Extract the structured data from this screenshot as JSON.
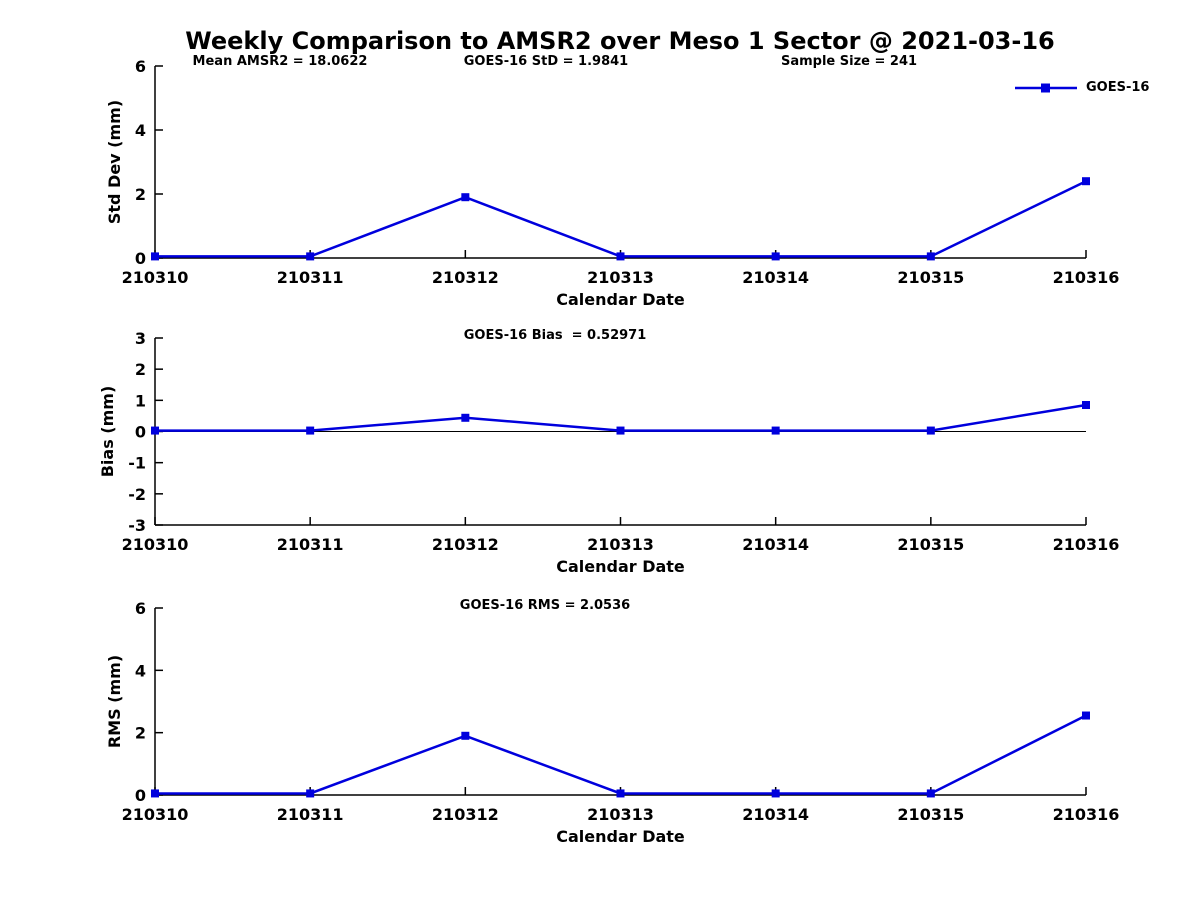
{
  "figure": {
    "title": "Weekly Comparison to AMSR2 over Meso 1 Sector @ 2021-03-16",
    "series_color": "#0000dd",
    "axis_color": "#000000",
    "legend": {
      "label": "GOES-16",
      "marker": "filled-square"
    }
  },
  "chart_data": [
    {
      "type": "line",
      "panel": "std-dev",
      "categories": [
        "210310",
        "210311",
        "210312",
        "210313",
        "210314",
        "210315",
        "210316"
      ],
      "series": [
        {
          "name": "GOES-16",
          "color": "#0000dd",
          "values": [
            0.05,
            0.05,
            1.9,
            0.05,
            0.05,
            0.05,
            2.4
          ]
        }
      ],
      "xlabel": "Calendar Date",
      "ylabel": "Std Dev (mm)",
      "ylim": [
        0,
        6
      ],
      "yticks": [
        0,
        2,
        4,
        6
      ],
      "grid": false,
      "annotations": [
        "Mean AMSR2 = 18.0622",
        "GOES-16 StD = 1.9841",
        "Sample Size = 241"
      ],
      "legend_entries": [
        "GOES-16"
      ],
      "legend_position": "top-right"
    },
    {
      "type": "line",
      "panel": "bias",
      "categories": [
        "210310",
        "210311",
        "210312",
        "210313",
        "210314",
        "210315",
        "210316"
      ],
      "series": [
        {
          "name": "GOES-16",
          "color": "#0000dd",
          "values": [
            0.03,
            0.03,
            0.44,
            0.03,
            0.03,
            0.03,
            0.85
          ]
        }
      ],
      "xlabel": "Calendar Date",
      "ylabel": "Bias (mm)",
      "ylim": [
        -3,
        3
      ],
      "yticks": [
        -3,
        -2,
        -1,
        0,
        1,
        2,
        3
      ],
      "grid": false,
      "zero_line": true,
      "annotations": [
        "GOES-16 Bias  = 0.52971"
      ]
    },
    {
      "type": "line",
      "panel": "rms",
      "categories": [
        "210310",
        "210311",
        "210312",
        "210313",
        "210314",
        "210315",
        "210316"
      ],
      "series": [
        {
          "name": "GOES-16",
          "color": "#0000dd",
          "values": [
            0.05,
            0.05,
            1.9,
            0.05,
            0.05,
            0.05,
            2.55
          ]
        }
      ],
      "xlabel": "Calendar Date",
      "ylabel": "RMS (mm)",
      "ylim": [
        0,
        6
      ],
      "yticks": [
        0,
        2,
        4,
        6
      ],
      "grid": false,
      "annotations": [
        "GOES-16 RMS = 2.0536"
      ]
    }
  ]
}
